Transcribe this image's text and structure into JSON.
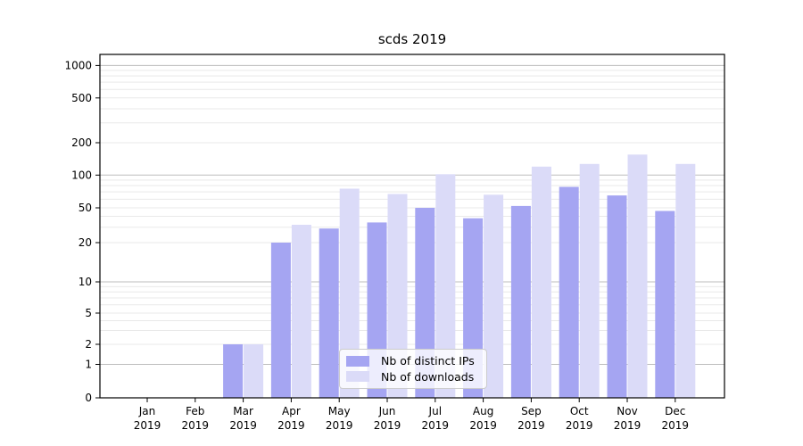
{
  "chart_data": {
    "type": "bar",
    "title": "scds 2019",
    "categories": [
      "Jan",
      "Feb",
      "Mar",
      "Apr",
      "May",
      "Jun",
      "Jul",
      "Aug",
      "Sep",
      "Oct",
      "Nov",
      "Dec"
    ],
    "year_label": "2019",
    "series": [
      {
        "name": "Nb of distinct IPs",
        "color": "#a5a5f2",
        "values": [
          0,
          0,
          2,
          20,
          29,
          34,
          50,
          38,
          52,
          78,
          65,
          46
        ]
      },
      {
        "name": "Nb of downloads",
        "color": "#dbdbf8",
        "values": [
          0,
          0,
          2,
          32,
          75,
          67,
          102,
          66,
          120,
          127,
          155,
          127
        ]
      }
    ],
    "yscale": "symlog",
    "ylim": [
      0,
      1300
    ],
    "yticks": [
      0,
      1,
      2,
      5,
      10,
      20,
      50,
      100,
      200,
      500,
      1000
    ],
    "grid": {
      "major_ticks": [
        1,
        10,
        100,
        1000
      ],
      "minor_base": [
        2,
        3,
        4,
        5,
        6,
        7,
        8,
        9
      ],
      "minor_decades": [
        1,
        10,
        100
      ],
      "major_color": "#bdbdbd",
      "minor_color": "#e9e9e9"
    },
    "legend_position": "lower center"
  }
}
